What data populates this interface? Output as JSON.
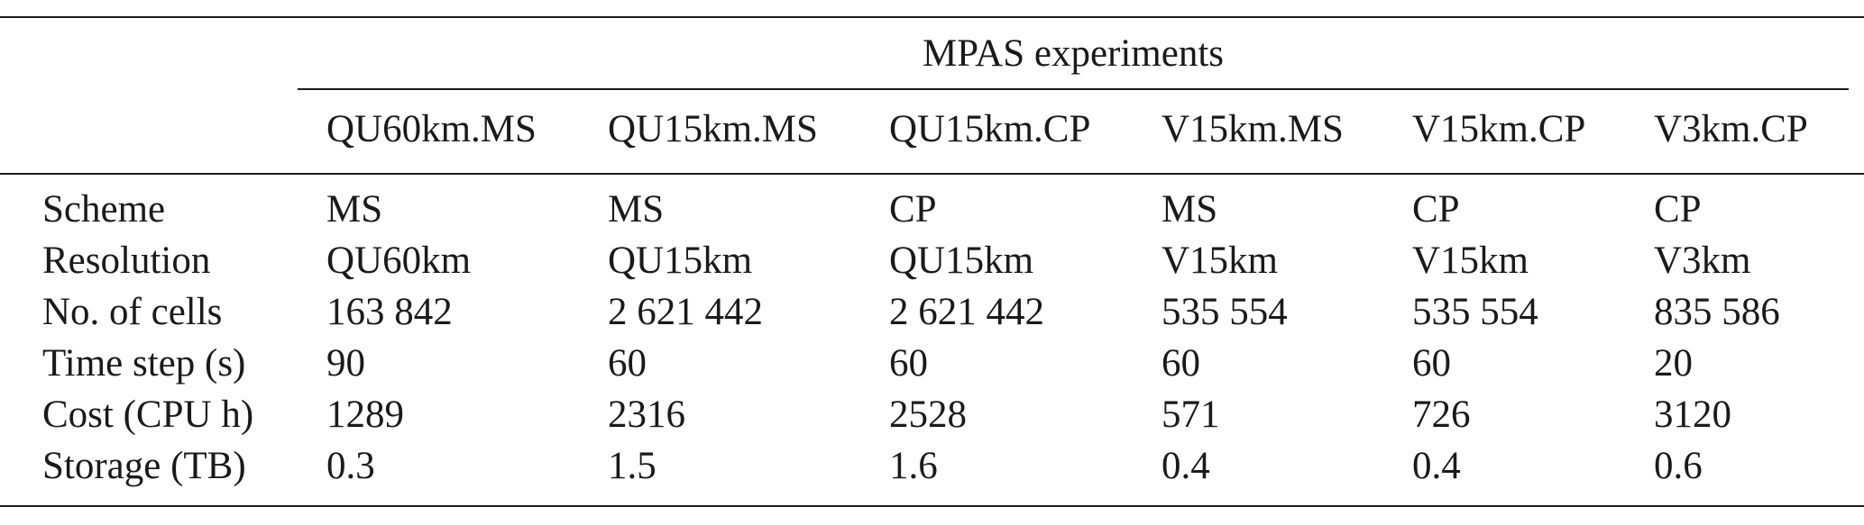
{
  "table": {
    "group_header": "MPAS experiments",
    "columns": [
      "QU60km.MS",
      "QU15km.MS",
      "QU15km.CP",
      "V15km.MS",
      "V15km.CP",
      "V3km.CP"
    ],
    "rows": [
      {
        "label": "Scheme",
        "values": [
          "MS",
          "MS",
          "CP",
          "MS",
          "CP",
          "CP"
        ]
      },
      {
        "label": "Resolution",
        "values": [
          "QU60km",
          "QU15km",
          "QU15km",
          "V15km",
          "V15km",
          "V3km"
        ]
      },
      {
        "label": "No. of cells",
        "values": [
          "163 842",
          "2 621 442",
          "2 621 442",
          "535 554",
          "535 554",
          "835 586"
        ]
      },
      {
        "label": "Time step (s)",
        "values": [
          "90",
          "60",
          "60",
          "60",
          "60",
          "20"
        ]
      },
      {
        "label": "Cost (CPU h)",
        "values": [
          "1289",
          "2316",
          "2528",
          "571",
          "726",
          "3120"
        ]
      },
      {
        "label": "Storage (TB)",
        "values": [
          "0.3",
          "1.5",
          "1.6",
          "0.4",
          "0.4",
          "0.6"
        ]
      }
    ]
  }
}
